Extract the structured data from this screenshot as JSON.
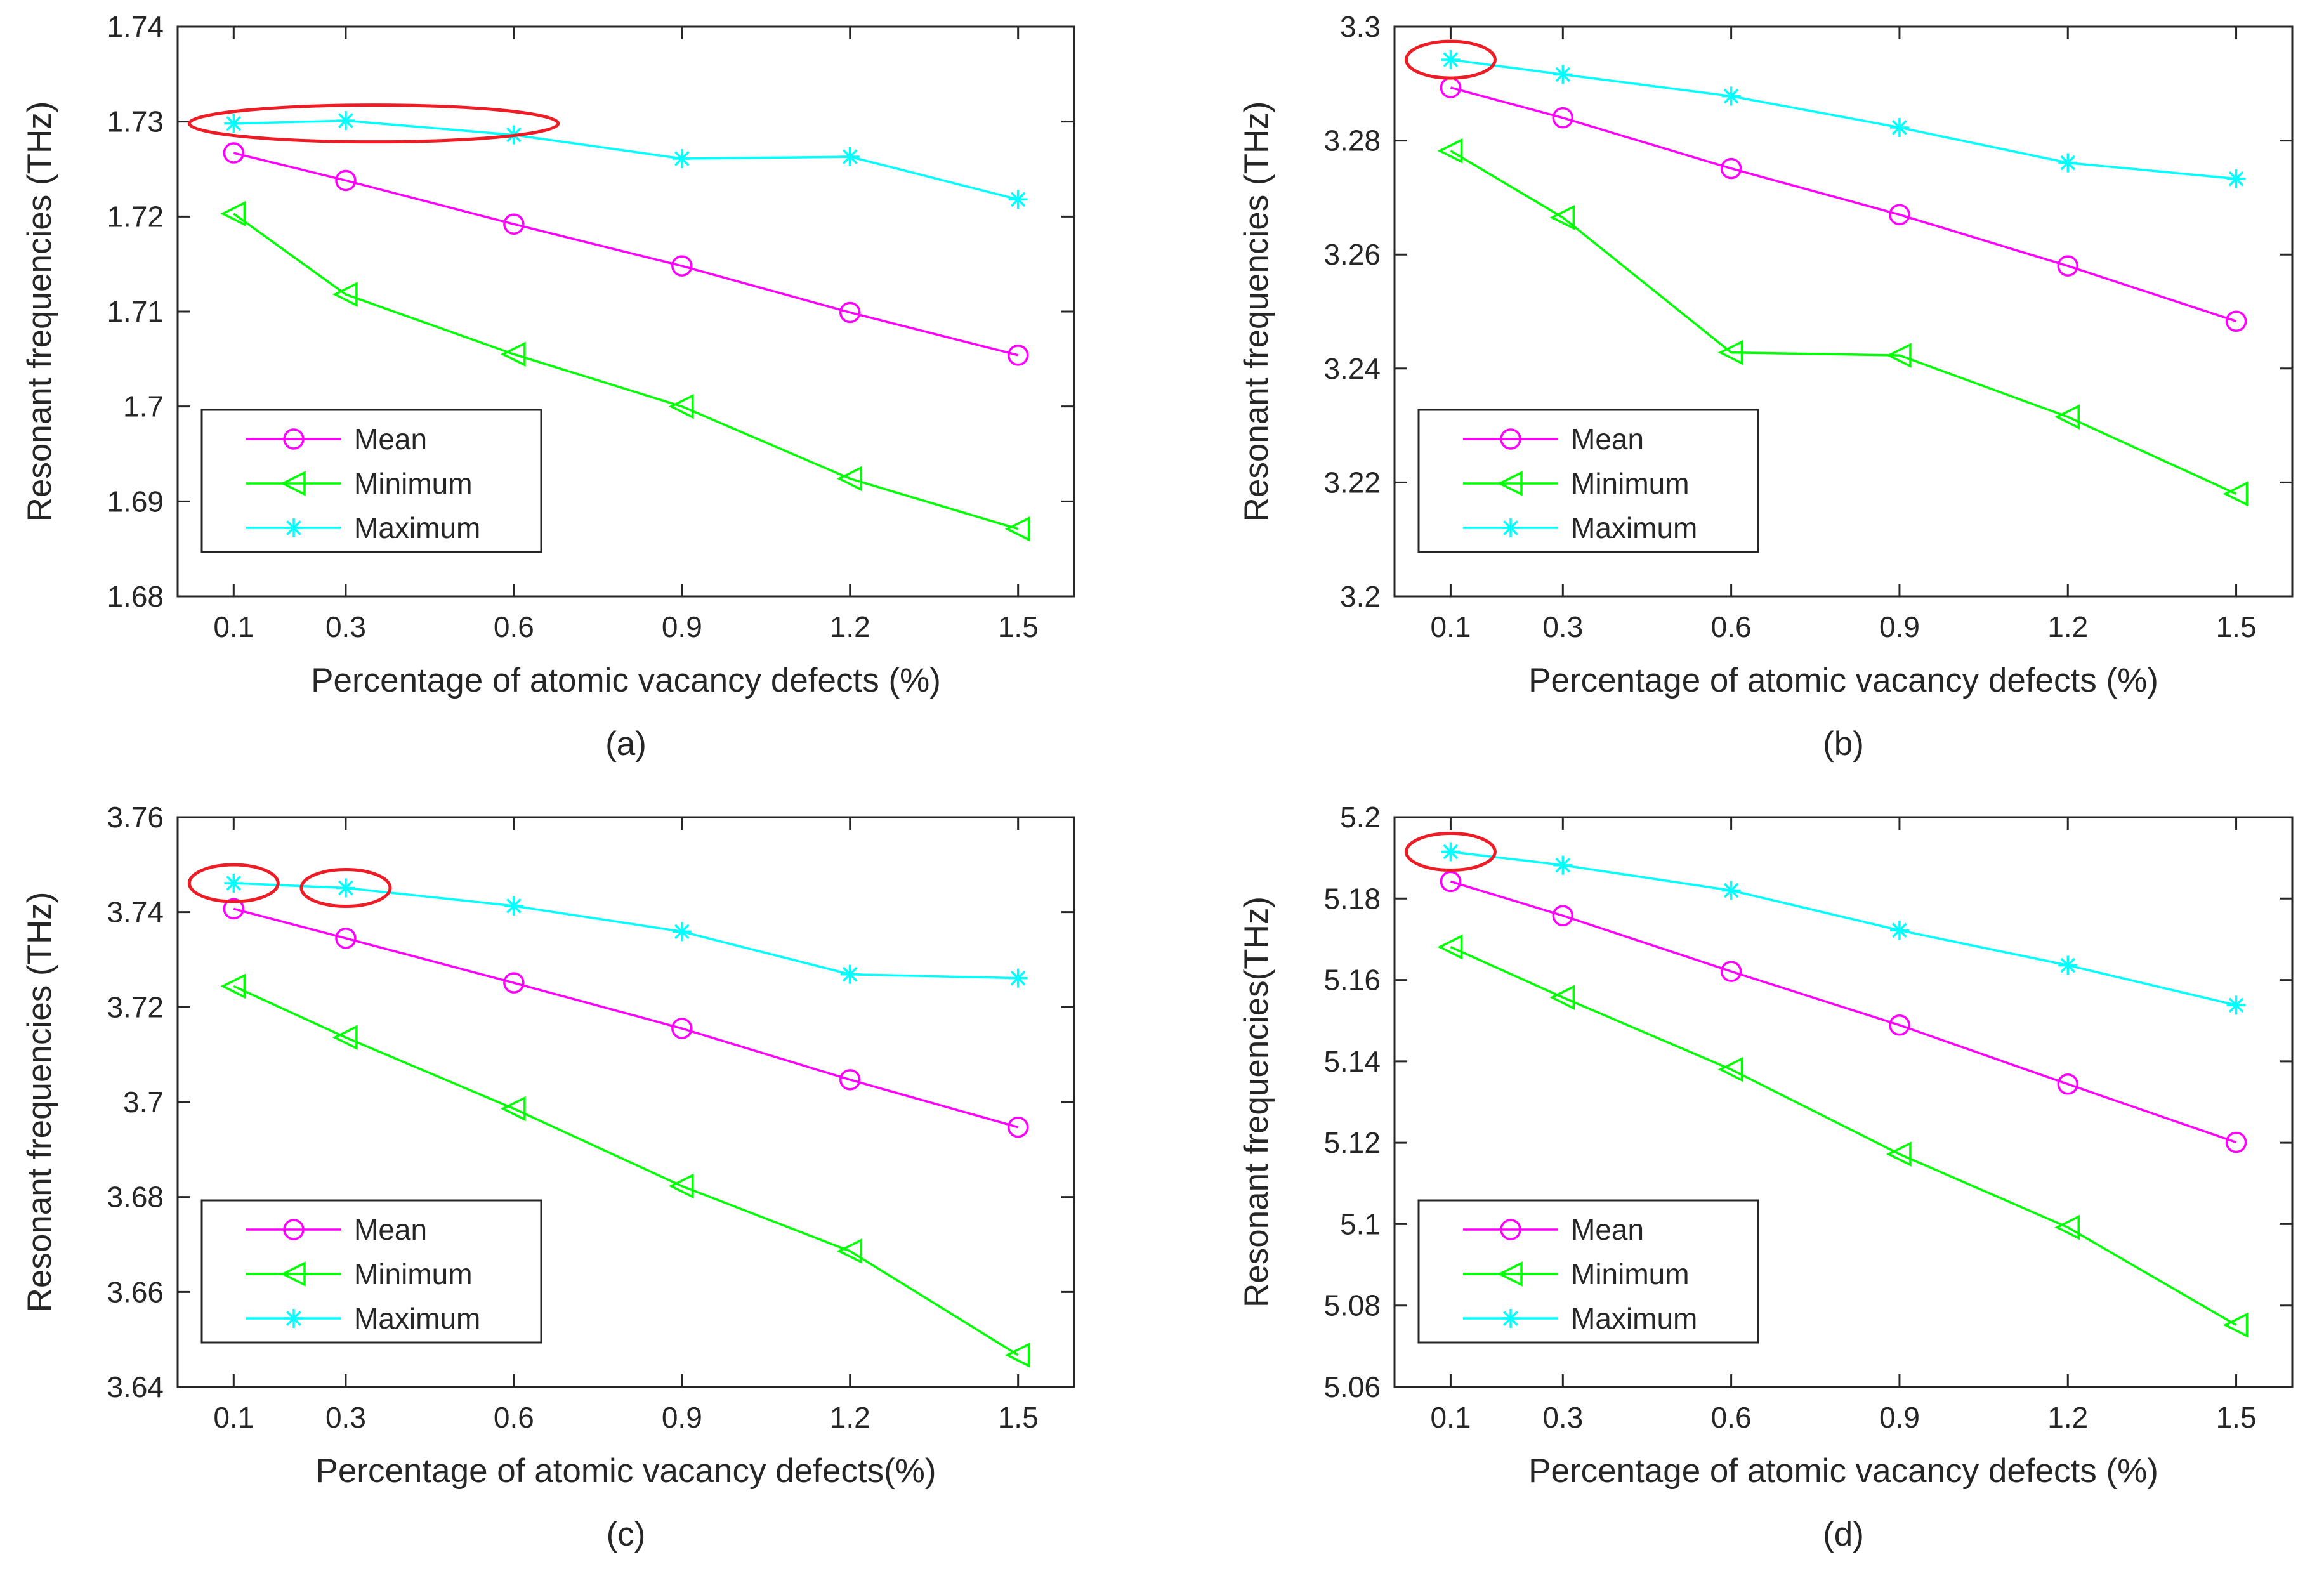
{
  "chart_data": [
    {
      "id": "a",
      "type": "line",
      "caption": "(a)",
      "xlabel": "Percentage of atomic vacancy defects (%)",
      "ylabel": "Resonant frequencies (THz)",
      "x": [
        0.1,
        0.3,
        0.6,
        0.9,
        1.2,
        1.5
      ],
      "xtick_labels": [
        "0.1",
        "0.3",
        "0.6",
        "0.9",
        "1.2",
        "1.5"
      ],
      "ylim": [
        1.68,
        1.74
      ],
      "yticks": [
        1.68,
        1.69,
        1.7,
        1.71,
        1.72,
        1.73,
        1.74
      ],
      "ytick_labels": [
        "1.68",
        "1.69",
        "1.7",
        "1.71",
        "1.72",
        "1.73",
        "1.74"
      ],
      "legend_position": "bottom-left",
      "series": [
        {
          "name": "Mean",
          "marker": "circle",
          "color": "#ff00ff",
          "values": [
            1.7267,
            1.7238,
            1.7192,
            1.7148,
            1.7099,
            1.7054
          ]
        },
        {
          "name": "Minimum",
          "marker": "triangle-left",
          "color": "#00ff00",
          "values": [
            1.7203,
            1.7118,
            1.7055,
            1.7,
            1.6924,
            1.6871
          ]
        },
        {
          "name": "Maximum",
          "marker": "asterisk",
          "color": "#00ffff",
          "values": [
            1.7298,
            1.7301,
            1.7286,
            1.7261,
            1.7263,
            1.7218
          ]
        }
      ],
      "highlights": [
        {
          "x_from": 0.1,
          "x_to": 0.6,
          "y": 1.7298,
          "color": "#ee1c25"
        }
      ]
    },
    {
      "id": "b",
      "type": "line",
      "caption": "(b)",
      "xlabel": "Percentage of atomic vacancy defects (%)",
      "ylabel": "Resonant frequencies (THz)",
      "x": [
        0.1,
        0.3,
        0.6,
        0.9,
        1.2,
        1.5
      ],
      "xtick_labels": [
        "0.1",
        "0.3",
        "0.6",
        "0.9",
        "1.2",
        "1.5"
      ],
      "ylim": [
        3.2,
        3.3
      ],
      "yticks": [
        3.2,
        3.22,
        3.24,
        3.26,
        3.28,
        3.3
      ],
      "ytick_labels": [
        "3.2",
        "3.22",
        "3.24",
        "3.26",
        "3.28",
        "3.3"
      ],
      "legend_position": "bottom-left",
      "series": [
        {
          "name": "Mean",
          "marker": "circle",
          "color": "#ff00ff",
          "values": [
            3.2893,
            3.284,
            3.2751,
            3.267,
            3.258,
            3.2483
          ]
        },
        {
          "name": "Minimum",
          "marker": "triangle-left",
          "color": "#00ff00",
          "values": [
            3.2782,
            3.2665,
            3.2428,
            3.2423,
            3.2315,
            3.218
          ]
        },
        {
          "name": "Maximum",
          "marker": "asterisk",
          "color": "#00ffff",
          "values": [
            3.2942,
            3.2916,
            3.2878,
            3.2823,
            3.2761,
            3.2733
          ]
        }
      ],
      "highlights": [
        {
          "x_from": 0.1,
          "x_to": 0.1,
          "y": 3.2942,
          "color": "#ee1c25"
        }
      ]
    },
    {
      "id": "c",
      "type": "line",
      "caption": "(c)",
      "xlabel": "Percentage of atomic vacancy defects(%)",
      "ylabel": "Resonant frequencies (THz)",
      "x": [
        0.1,
        0.3,
        0.6,
        0.9,
        1.2,
        1.5
      ],
      "xtick_labels": [
        "0.1",
        "0.3",
        "0.6",
        "0.9",
        "1.2",
        "1.5"
      ],
      "ylim": [
        3.64,
        3.76
      ],
      "yticks": [
        3.64,
        3.66,
        3.68,
        3.7,
        3.72,
        3.74,
        3.76
      ],
      "ytick_labels": [
        "3.64",
        "3.66",
        "3.68",
        "3.7",
        "3.72",
        "3.74",
        "3.76"
      ],
      "legend_position": "bottom-left",
      "series": [
        {
          "name": "Mean",
          "marker": "circle",
          "color": "#ff00ff",
          "values": [
            3.7407,
            3.7345,
            3.7251,
            3.7155,
            3.7047,
            3.6947
          ]
        },
        {
          "name": "Minimum",
          "marker": "triangle-left",
          "color": "#00ff00",
          "values": [
            3.7244,
            3.7136,
            3.6986,
            3.6823,
            3.6686,
            3.6467
          ]
        },
        {
          "name": "Maximum",
          "marker": "asterisk",
          "color": "#00ffff",
          "values": [
            3.7461,
            3.7451,
            3.7413,
            3.7359,
            3.7269,
            3.7261
          ]
        }
      ],
      "highlights": [
        {
          "x_from": 0.1,
          "x_to": 0.1,
          "y": 3.7461,
          "color": "#ee1c25"
        },
        {
          "x_from": 0.3,
          "x_to": 0.3,
          "y": 3.7451,
          "color": "#ee1c25"
        }
      ]
    },
    {
      "id": "d",
      "type": "line",
      "caption": "(d)",
      "xlabel": "Percentage of atomic vacancy defects (%)",
      "ylabel": "Resonant frequencies(THz)",
      "x": [
        0.1,
        0.3,
        0.6,
        0.9,
        1.2,
        1.5
      ],
      "xtick_labels": [
        "0.1",
        "0.3",
        "0.6",
        "0.9",
        "1.2",
        "1.5"
      ],
      "ylim": [
        5.06,
        5.2
      ],
      "yticks": [
        5.06,
        5.08,
        5.1,
        5.12,
        5.14,
        5.16,
        5.18,
        5.2
      ],
      "ytick_labels": [
        "5.06",
        "5.08",
        "5.1",
        "5.12",
        "5.14",
        "5.16",
        "5.18",
        "5.2"
      ],
      "legend_position": "bottom-left",
      "series": [
        {
          "name": "Mean",
          "marker": "circle",
          "color": "#ff00ff",
          "values": [
            5.1842,
            5.1758,
            5.1621,
            5.1489,
            5.1344,
            5.1201
          ]
        },
        {
          "name": "Minimum",
          "marker": "triangle-left",
          "color": "#00ff00",
          "values": [
            5.1681,
            5.1557,
            5.138,
            5.1172,
            5.0992,
            5.0752
          ]
        },
        {
          "name": "Maximum",
          "marker": "asterisk",
          "color": "#00ffff",
          "values": [
            5.1915,
            5.1882,
            5.182,
            5.1722,
            5.1636,
            5.1538
          ]
        }
      ],
      "highlights": [
        {
          "x_from": 0.1,
          "x_to": 0.1,
          "y": 5.1915,
          "color": "#ee1c25"
        }
      ]
    }
  ]
}
